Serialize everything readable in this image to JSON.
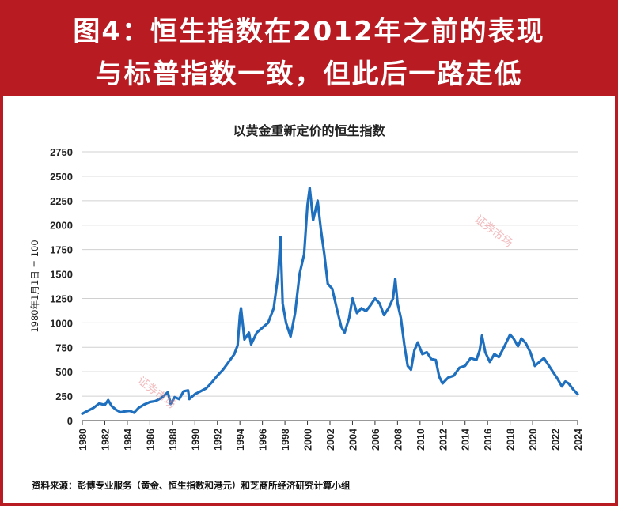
{
  "header": {
    "title_line1": "图4：恒生指数在2012年之前的表现",
    "title_line2": "与标普指数一致，但此后一路走低"
  },
  "watermark": "证券市场",
  "source_note": "资料来源：彭博专业服务（黄金、恒生指数和港元）和芝商所经济研究计算小组",
  "colors": {
    "banner": "#b81c22",
    "line": "#1f6fbf",
    "grid": "#d0d0d0"
  },
  "chart_data": {
    "type": "line",
    "title": "以黄金重新定价的恒生指数",
    "ylabel": "1980年1月1日 = 100",
    "xlabel": "",
    "xlim": [
      1980,
      2024
    ],
    "ylim": [
      0,
      2750
    ],
    "yticks": [
      0,
      250,
      500,
      750,
      1000,
      1250,
      1500,
      1750,
      2000,
      2250,
      2500,
      2750
    ],
    "xticks": [
      1980,
      1982,
      1984,
      1986,
      1988,
      1990,
      1992,
      1994,
      1996,
      1998,
      2000,
      2002,
      2004,
      2006,
      2008,
      2010,
      2012,
      2014,
      2016,
      2018,
      2020,
      2022,
      2024
    ],
    "grid": "horizontal",
    "series": [
      {
        "values": [
          [
            1980.0,
            70
          ],
          [
            1980.5,
            100
          ],
          [
            1981.0,
            130
          ],
          [
            1981.5,
            175
          ],
          [
            1982.0,
            160
          ],
          [
            1982.3,
            210
          ],
          [
            1982.6,
            150
          ],
          [
            1983.0,
            110
          ],
          [
            1983.4,
            85
          ],
          [
            1983.8,
            95
          ],
          [
            1984.2,
            100
          ],
          [
            1984.6,
            80
          ],
          [
            1985.0,
            130
          ],
          [
            1985.5,
            165
          ],
          [
            1986.0,
            190
          ],
          [
            1986.5,
            200
          ],
          [
            1987.0,
            230
          ],
          [
            1987.6,
            290
          ],
          [
            1987.85,
            170
          ],
          [
            1988.2,
            240
          ],
          [
            1988.6,
            220
          ],
          [
            1989.0,
            300
          ],
          [
            1989.4,
            310
          ],
          [
            1989.5,
            220
          ],
          [
            1990.0,
            270
          ],
          [
            1990.5,
            300
          ],
          [
            1991.0,
            330
          ],
          [
            1991.5,
            390
          ],
          [
            1992.0,
            460
          ],
          [
            1992.5,
            520
          ],
          [
            1993.0,
            600
          ],
          [
            1993.5,
            680
          ],
          [
            1993.8,
            770
          ],
          [
            1994.0,
            1080
          ],
          [
            1994.1,
            1150
          ],
          [
            1994.4,
            830
          ],
          [
            1994.8,
            900
          ],
          [
            1995.0,
            780
          ],
          [
            1995.5,
            900
          ],
          [
            1996.0,
            950
          ],
          [
            1996.5,
            1000
          ],
          [
            1997.0,
            1150
          ],
          [
            1997.4,
            1500
          ],
          [
            1997.6,
            1880
          ],
          [
            1997.8,
            1200
          ],
          [
            1998.1,
            1000
          ],
          [
            1998.5,
            860
          ],
          [
            1998.9,
            1100
          ],
          [
            1999.3,
            1500
          ],
          [
            1999.7,
            1700
          ],
          [
            2000.0,
            2200
          ],
          [
            2000.2,
            2380
          ],
          [
            2000.5,
            2050
          ],
          [
            2000.9,
            2250
          ],
          [
            2001.2,
            1950
          ],
          [
            2001.5,
            1700
          ],
          [
            2001.8,
            1400
          ],
          [
            2002.2,
            1350
          ],
          [
            2002.6,
            1150
          ],
          [
            2003.0,
            960
          ],
          [
            2003.3,
            900
          ],
          [
            2003.7,
            1050
          ],
          [
            2004.0,
            1250
          ],
          [
            2004.4,
            1100
          ],
          [
            2004.8,
            1150
          ],
          [
            2005.2,
            1120
          ],
          [
            2005.6,
            1180
          ],
          [
            2006.0,
            1250
          ],
          [
            2006.4,
            1200
          ],
          [
            2006.8,
            1080
          ],
          [
            2007.2,
            1150
          ],
          [
            2007.6,
            1250
          ],
          [
            2007.8,
            1450
          ],
          [
            2008.0,
            1200
          ],
          [
            2008.3,
            1050
          ],
          [
            2008.6,
            780
          ],
          [
            2008.9,
            560
          ],
          [
            2009.2,
            520
          ],
          [
            2009.5,
            720
          ],
          [
            2009.8,
            800
          ],
          [
            2010.2,
            680
          ],
          [
            2010.6,
            700
          ],
          [
            2011.0,
            630
          ],
          [
            2011.4,
            620
          ],
          [
            2011.7,
            450
          ],
          [
            2012.0,
            380
          ],
          [
            2012.5,
            440
          ],
          [
            2013.0,
            460
          ],
          [
            2013.5,
            540
          ],
          [
            2014.0,
            560
          ],
          [
            2014.5,
            640
          ],
          [
            2015.0,
            620
          ],
          [
            2015.3,
            720
          ],
          [
            2015.5,
            870
          ],
          [
            2015.8,
            700
          ],
          [
            2016.2,
            600
          ],
          [
            2016.6,
            680
          ],
          [
            2017.0,
            650
          ],
          [
            2017.5,
            760
          ],
          [
            2018.0,
            880
          ],
          [
            2018.3,
            840
          ],
          [
            2018.7,
            760
          ],
          [
            2019.0,
            840
          ],
          [
            2019.4,
            790
          ],
          [
            2019.8,
            700
          ],
          [
            2020.2,
            560
          ],
          [
            2020.5,
            590
          ],
          [
            2021.0,
            640
          ],
          [
            2021.4,
            570
          ],
          [
            2021.8,
            500
          ],
          [
            2022.2,
            430
          ],
          [
            2022.6,
            350
          ],
          [
            2022.9,
            400
          ],
          [
            2023.2,
            380
          ],
          [
            2023.6,
            320
          ],
          [
            2024.0,
            270
          ]
        ]
      }
    ]
  }
}
